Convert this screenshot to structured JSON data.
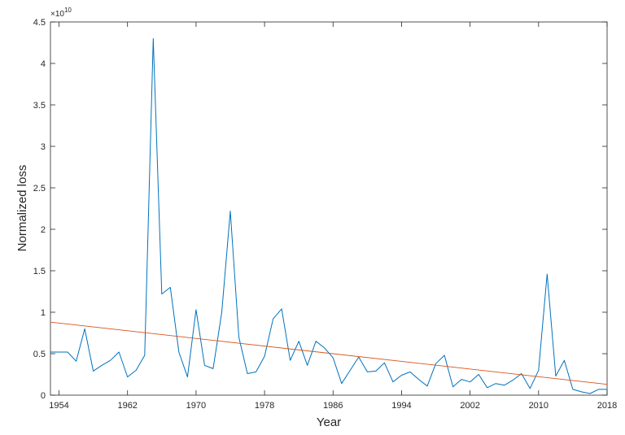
{
  "chart_data": {
    "type": "line",
    "xlabel": "Year",
    "ylabel": "Normalized loss",
    "y_multiplier_label": "×10",
    "y_multiplier_exp": "10",
    "xlim": [
      1953,
      2018
    ],
    "ylim": [
      0,
      4.5
    ],
    "xticks": [
      1954,
      1962,
      1970,
      1978,
      1986,
      1994,
      2002,
      2010,
      2018
    ],
    "yticks": [
      0,
      0.5,
      1,
      1.5,
      2,
      2.5,
      3,
      3.5,
      4,
      4.5
    ],
    "ytick_labels": [
      "0",
      "0.5",
      "1",
      "1.5",
      "2",
      "2.5",
      "3",
      "3.5",
      "4",
      "4.5"
    ],
    "grid": false,
    "series": [
      {
        "color": "#0072BD",
        "x": [
          1953,
          1954,
          1955,
          1956,
          1957,
          1958,
          1959,
          1960,
          1961,
          1962,
          1963,
          1964,
          1965,
          1966,
          1967,
          1968,
          1969,
          1970,
          1971,
          1972,
          1973,
          1974,
          1975,
          1976,
          1977,
          1978,
          1979,
          1980,
          1981,
          1982,
          1983,
          1984,
          1985,
          1986,
          1987,
          1988,
          1989,
          1990,
          1991,
          1992,
          1993,
          1994,
          1995,
          1996,
          1997,
          1998,
          1999,
          2000,
          2001,
          2002,
          2003,
          2004,
          2005,
          2006,
          2007,
          2008,
          2009,
          2010,
          2011,
          2012,
          2013,
          2014,
          2015,
          2016,
          2017,
          2018
        ],
        "y": [
          0.52,
          0.52,
          0.52,
          0.41,
          0.8,
          0.29,
          0.36,
          0.42,
          0.52,
          0.22,
          0.3,
          0.48,
          4.3,
          1.22,
          1.3,
          0.52,
          0.22,
          1.03,
          0.36,
          0.32,
          1.0,
          2.22,
          0.7,
          0.26,
          0.28,
          0.47,
          0.92,
          1.04,
          0.42,
          0.65,
          0.36,
          0.65,
          0.57,
          0.45,
          0.14,
          0.3,
          0.46,
          0.28,
          0.29,
          0.39,
          0.16,
          0.24,
          0.28,
          0.19,
          0.11,
          0.38,
          0.48,
          0.1,
          0.19,
          0.16,
          0.25,
          0.09,
          0.14,
          0.12,
          0.18,
          0.26,
          0.08,
          0.3,
          1.46,
          0.23,
          0.42,
          0.07,
          0.04,
          0.02,
          0.07,
          0.07
        ]
      },
      {
        "color": "#D95319",
        "x": [
          1953,
          2018
        ],
        "y": [
          0.88,
          0.13
        ]
      }
    ]
  }
}
